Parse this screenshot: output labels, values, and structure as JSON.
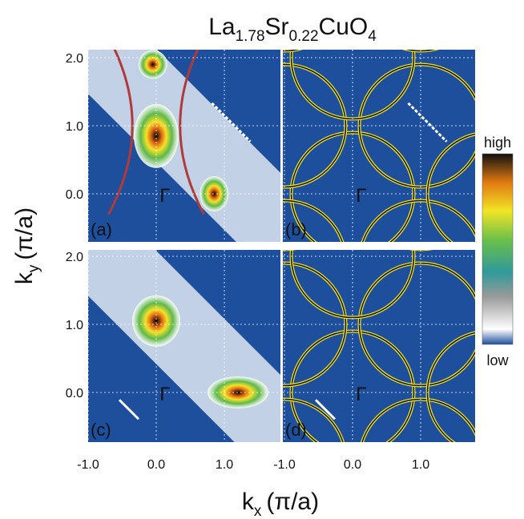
{
  "title": {
    "el1": "La",
    "sub1": "1.78",
    "el2": "Sr",
    "sub2": "0.22",
    "el3": "CuO",
    "sub3": "4"
  },
  "x_axis": {
    "symbol": "k",
    "sub": "x",
    "unit": "(π/a)",
    "left_ticks": [
      "-1.0",
      "0.0",
      "1.0"
    ],
    "right_ticks": [
      "-1.0",
      "0.0",
      "1.0"
    ]
  },
  "y_axis": {
    "symbol": "k",
    "sub": "y",
    "unit": "(π/a)",
    "top_ticks": [
      "2.0",
      "1.0",
      "0.0"
    ],
    "bottom_ticks": [
      "2.0",
      "1.0",
      "0.0"
    ]
  },
  "panels": [
    {
      "label": "(a)",
      "point": "Γ"
    },
    {
      "label": "(b)",
      "point": "Γ"
    },
    {
      "label": "(c)",
      "point": "Γ"
    },
    {
      "label": "(d)",
      "point": "Γ"
    }
  ],
  "colorbar": {
    "top": "high",
    "bottom": "low"
  }
}
